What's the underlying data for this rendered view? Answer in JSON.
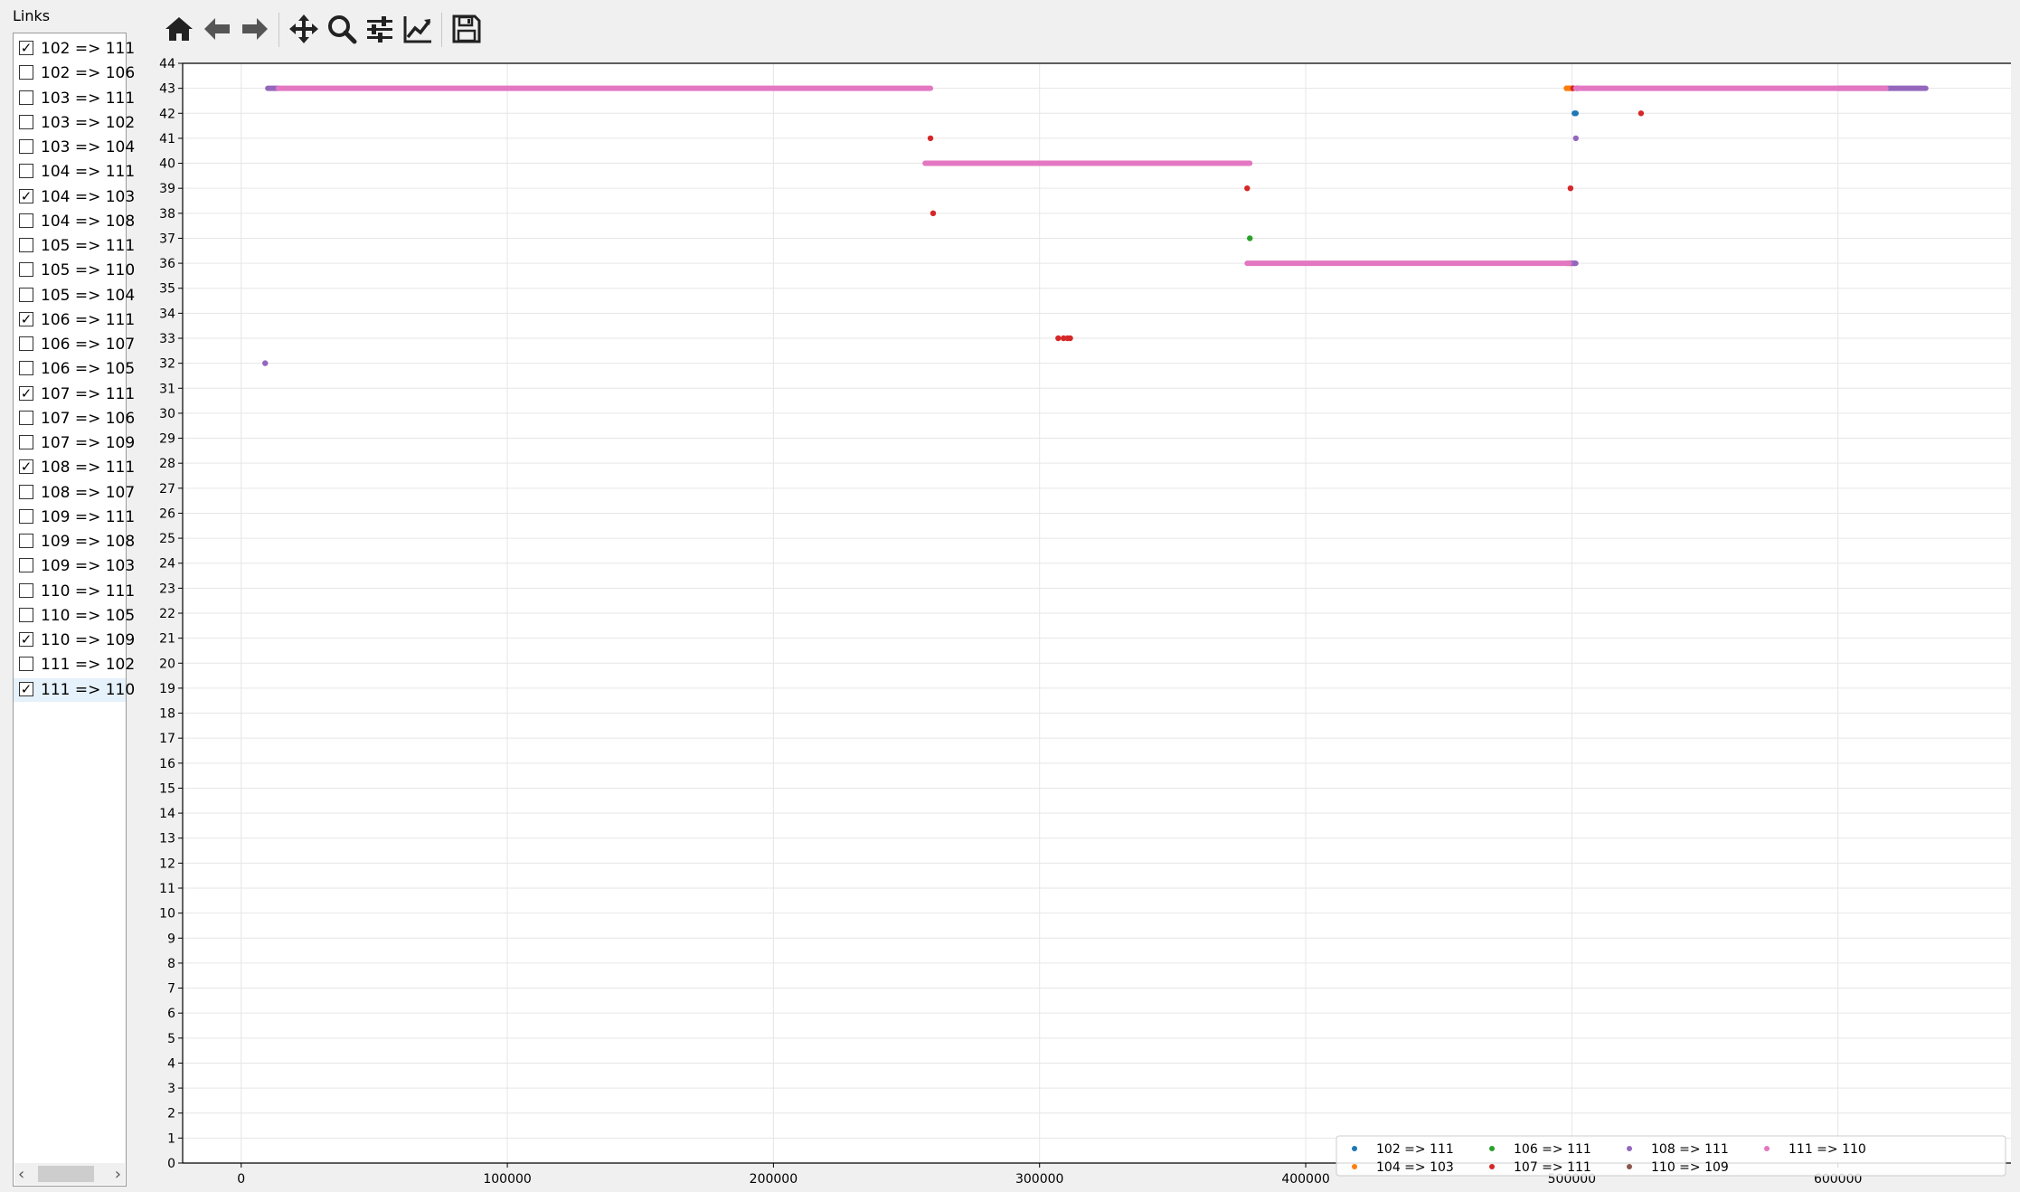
{
  "sidebar": {
    "title": "Links",
    "items": [
      {
        "label": "102 => 111",
        "checked": true
      },
      {
        "label": "102 => 106",
        "checked": false
      },
      {
        "label": "103 => 111",
        "checked": false
      },
      {
        "label": "103 => 102",
        "checked": false
      },
      {
        "label": "103 => 104",
        "checked": false
      },
      {
        "label": "104 => 111",
        "checked": false
      },
      {
        "label": "104 => 103",
        "checked": true
      },
      {
        "label": "104 => 108",
        "checked": false
      },
      {
        "label": "105 => 111",
        "checked": false
      },
      {
        "label": "105 => 110",
        "checked": false
      },
      {
        "label": "105 => 104",
        "checked": false
      },
      {
        "label": "106 => 111",
        "checked": true
      },
      {
        "label": "106 => 107",
        "checked": false
      },
      {
        "label": "106 => 105",
        "checked": false
      },
      {
        "label": "107 => 111",
        "checked": true
      },
      {
        "label": "107 => 106",
        "checked": false
      },
      {
        "label": "107 => 109",
        "checked": false
      },
      {
        "label": "108 => 111",
        "checked": true
      },
      {
        "label": "108 => 107",
        "checked": false
      },
      {
        "label": "109 => 111",
        "checked": false
      },
      {
        "label": "109 => 108",
        "checked": false
      },
      {
        "label": "109 => 103",
        "checked": false
      },
      {
        "label": "110 => 111",
        "checked": false
      },
      {
        "label": "110 => 105",
        "checked": false
      },
      {
        "label": "110 => 109",
        "checked": true
      },
      {
        "label": "111 => 102",
        "checked": false
      },
      {
        "label": "111 => 110",
        "checked": true
      }
    ],
    "selected_index": 26,
    "checkmark": "✓"
  },
  "toolbar": {
    "buttons": [
      {
        "name": "home-button",
        "icon": "home-icon"
      },
      {
        "name": "back-button",
        "icon": "arrow-left-icon"
      },
      {
        "name": "forward-button",
        "icon": "arrow-right-icon"
      },
      {
        "name": "pan-button",
        "icon": "move-icon"
      },
      {
        "name": "zoom-button",
        "icon": "magnifier-icon"
      },
      {
        "name": "configure-subplots-button",
        "icon": "sliders-icon"
      },
      {
        "name": "edit-axes-button",
        "icon": "line-chart-icon"
      },
      {
        "name": "save-button",
        "icon": "floppy-icon"
      }
    ]
  },
  "chart_data": {
    "type": "scatter",
    "title": "",
    "xlabel": "",
    "ylabel": "",
    "xlim": [
      -22000,
      665000
    ],
    "ylim": [
      0,
      44
    ],
    "xticks": [
      0,
      100000,
      200000,
      300000,
      400000,
      500000,
      600000
    ],
    "xtick_labels": [
      "0",
      "100000",
      "200000",
      "300000",
      "400000",
      "500000",
      "600000"
    ],
    "yticks": [
      0,
      1,
      2,
      3,
      4,
      5,
      6,
      7,
      8,
      9,
      10,
      11,
      12,
      13,
      14,
      15,
      16,
      17,
      18,
      19,
      20,
      21,
      22,
      23,
      24,
      25,
      26,
      27,
      28,
      29,
      30,
      31,
      32,
      33,
      34,
      35,
      36,
      37,
      38,
      39,
      40,
      41,
      42,
      43,
      44
    ],
    "grid": true,
    "legend_position": "lower-right",
    "legend_columns": 5,
    "series": [
      {
        "name": "102 => 111",
        "color": "#1f77b4",
        "points": [
          [
            501000,
            42
          ],
          [
            501500,
            42
          ]
        ],
        "segments": []
      },
      {
        "name": "104 => 103",
        "color": "#ff7f0e",
        "points": [
          [
            498000,
            43
          ],
          [
            499000,
            43
          ],
          [
            500000,
            43
          ],
          [
            498500,
            36
          ],
          [
            499500,
            36
          ]
        ],
        "segments": []
      },
      {
        "name": "106 => 111",
        "color": "#2ca02c",
        "points": [
          [
            379000,
            37
          ]
        ],
        "segments": []
      },
      {
        "name": "107 => 111",
        "color": "#d62728",
        "points": [
          [
            259000,
            41
          ],
          [
            260000,
            38
          ],
          [
            307000,
            33
          ],
          [
            309000,
            33
          ],
          [
            310500,
            33
          ],
          [
            311500,
            33
          ],
          [
            378000,
            39
          ],
          [
            499500,
            39
          ],
          [
            500500,
            43
          ],
          [
            526000,
            42
          ]
        ],
        "segments": []
      },
      {
        "name": "108 => 111",
        "color": "#9467bd",
        "points": [
          [
            9000,
            32
          ],
          [
            501500,
            41
          ],
          [
            501000,
            36
          ],
          [
            502000,
            43
          ]
        ],
        "segments": [
          [
            10000,
            14000,
            43
          ],
          [
            600000,
            633000,
            43
          ],
          [
            499000,
            501500,
            36
          ]
        ]
      },
      {
        "name": "110 => 109",
        "color": "#8c564b",
        "points": [],
        "segments": []
      },
      {
        "name": "111 => 110",
        "color": "#e377c2",
        "points": [],
        "segments": [
          [
            14000,
            259000,
            43
          ],
          [
            257000,
            379000,
            40
          ],
          [
            378000,
            499000,
            36
          ],
          [
            501500,
            618000,
            43
          ]
        ]
      }
    ]
  }
}
